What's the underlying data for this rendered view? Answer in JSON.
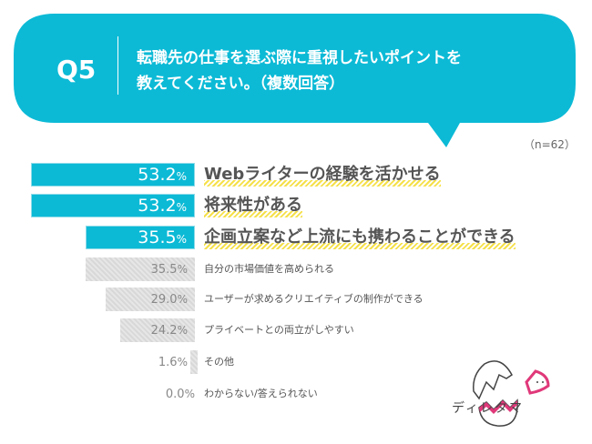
{
  "header": {
    "question": "Q5",
    "title_line1": "転職先の仕事を選ぶ際に重視したいポイントを",
    "title_line2": "教えてください。（複数回答）"
  },
  "sample": "（n=62）",
  "brand": "ディレタマ",
  "colors": {
    "highlight": "#0cbad6",
    "other": "#dcdcdc",
    "underline": "#f5e04a"
  },
  "chart_data": {
    "type": "bar",
    "orientation": "horizontal",
    "unit": "%",
    "categories": [
      "Webライターの経験を活かせる",
      "将来性がある",
      "企画立案など上流にも携わることができる",
      "自分の市場価値を高められる",
      "ユーザーが求めるクリエイティブの制作ができる",
      "プライベートとの両立がしやすい",
      "その他",
      "わからない/答えられない"
    ],
    "values": [
      53.2,
      53.2,
      35.5,
      35.5,
      29.0,
      24.2,
      1.6,
      0.0
    ],
    "labels": [
      "53.2",
      "53.2",
      "35.5",
      "35.5",
      "29.0",
      "24.2",
      "1.6",
      "0.0"
    ],
    "highlighted": [
      true,
      true,
      true,
      false,
      false,
      false,
      false,
      false
    ]
  }
}
